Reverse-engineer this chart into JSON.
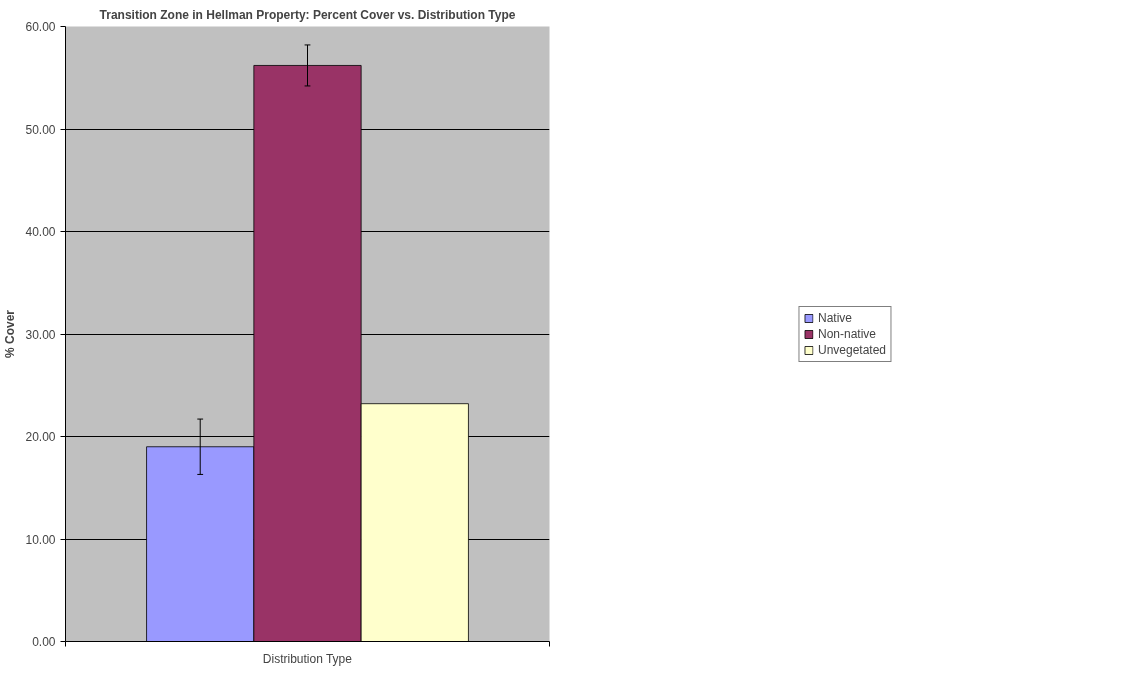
{
  "chart_data": {
    "type": "bar",
    "title": "Transition Zone in Hellman Property: Percent Cover vs. Distribution Type",
    "xlabel": "Distribution Type",
    "ylabel": "% Cover",
    "categories": [
      null
    ],
    "series": [
      {
        "name": "Native",
        "color": "#9999ff",
        "values": [
          19.0
        ],
        "errors": [
          2.7
        ]
      },
      {
        "name": "Non-native",
        "color": "#993366",
        "values": [
          56.2
        ],
        "errors": [
          2.0
        ]
      },
      {
        "name": "Unvegetated",
        "color": "#ffffcc",
        "values": [
          23.2
        ],
        "errors": [
          null
        ]
      }
    ],
    "ylim": [
      0,
      60
    ],
    "yticks": [
      {
        "value": 0,
        "label": "0.00"
      },
      {
        "value": 10,
        "label": "10.00"
      },
      {
        "value": 20,
        "label": "20.00"
      },
      {
        "value": 30,
        "label": "30.00"
      },
      {
        "value": 40,
        "label": "40.00"
      },
      {
        "value": 50,
        "label": "50.00"
      },
      {
        "value": 60,
        "label": "60.00"
      }
    ],
    "grid": "y",
    "legend": "right"
  }
}
